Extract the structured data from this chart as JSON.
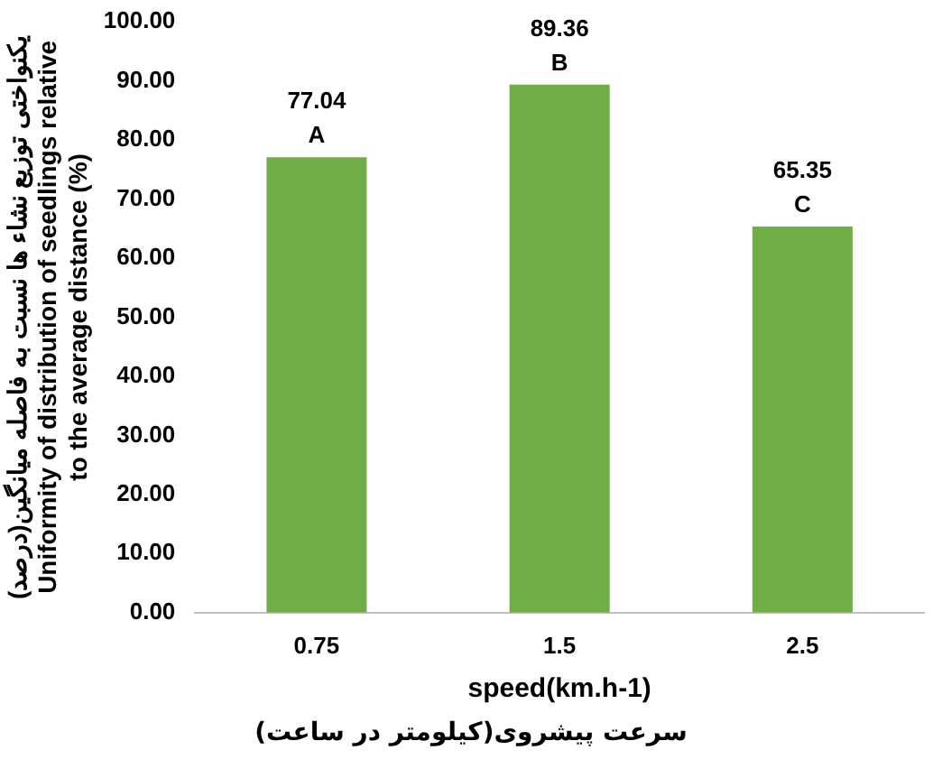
{
  "chart_data": {
    "type": "bar",
    "ylabel": "یکنواختی توزیع نشاء ها نسبت به فاصله میانگین(درصد)\nUniformity of distribution of seedlings relative\nto the average distance (%)",
    "xlabel": "speed(km.h-1)",
    "categories": [
      "0.75",
      "1.5",
      "2.5"
    ],
    "values": [
      77.04,
      89.36,
      65.35
    ],
    "color": "#70ad47",
    "value_labels": [
      "77.04",
      "89.36",
      "65.35"
    ],
    "ylim": [
      0,
      100
    ],
    "yticks": [
      {
        "value": 0,
        "label": "0.00"
      },
      {
        "value": 10,
        "label": "10.00"
      },
      {
        "value": 20,
        "label": "20.00"
      },
      {
        "value": 30,
        "label": "30.00"
      },
      {
        "value": 40,
        "label": "40.00"
      },
      {
        "value": 50,
        "label": "50.00"
      },
      {
        "value": 60,
        "label": "60.00"
      },
      {
        "value": 70,
        "label": "70.00"
      },
      {
        "value": 80,
        "label": "80.00"
      },
      {
        "value": 90,
        "label": "90.00"
      },
      {
        "value": 100,
        "label": "100.00"
      }
    ],
    "annotations": [
      {
        "text": "A",
        "x": "0.75",
        "y": 77.04
      },
      {
        "text": "B",
        "x": "1.5",
        "y": 89.36
      },
      {
        "text": "C",
        "x": "2.5",
        "y": 65.35
      },
      "سرعت پیشروی(کیلومتر در ساعت)"
    ],
    "grid": false,
    "legend": false
  }
}
